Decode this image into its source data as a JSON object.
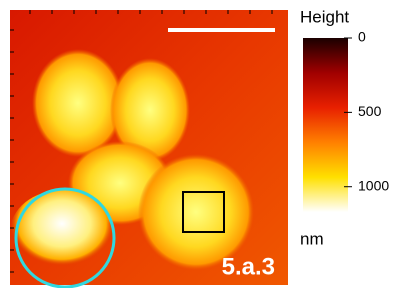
{
  "image": {
    "label": "5.a.3"
  },
  "colorbar": {
    "title": "Height",
    "unit": "nm",
    "lim": [
      0,
      1170
    ],
    "ticks": [
      0,
      500,
      1000
    ]
  }
}
